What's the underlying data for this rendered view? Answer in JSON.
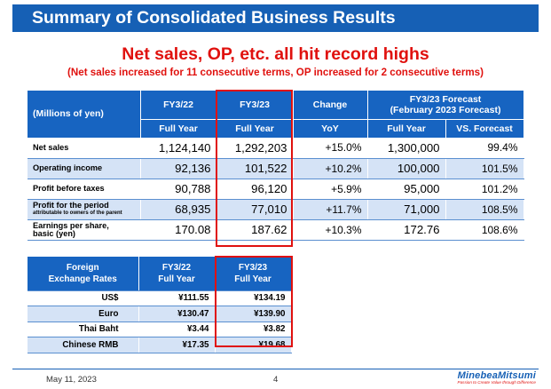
{
  "title": "Summary of Consolidated Business Results",
  "headline": "Net sales, OP, etc. all hit record highs",
  "subheadline": "(Net sales increased for 11 consecutive terms, OP increased for 2 consecutive terms)",
  "results_table": {
    "unit_label": "(Millions of yen)",
    "col_fy22": "FY3/22",
    "col_fy23": "FY3/23",
    "col_change": "Change",
    "col_forecast_line1": "FY3/23 Forecast",
    "col_forecast_line2": "(February 2023 Forecast)",
    "sub_fy22": "Full Year",
    "sub_fy23": "Full Year",
    "sub_change": "YoY",
    "sub_forecast": "Full Year",
    "sub_vs_forecast": "VS. Forecast",
    "rows": [
      {
        "label": "Net sales",
        "label_sub": "",
        "fy22": "1,124,140",
        "fy23": "1,292,203",
        "yoy": "+15.0%",
        "forecast": "1,300,000",
        "vs": "99.4%"
      },
      {
        "label": "Operating income",
        "label_sub": "",
        "fy22": "92,136",
        "fy23": "101,522",
        "yoy": "+10.2%",
        "forecast": "100,000",
        "vs": "101.5%"
      },
      {
        "label": "Profit before taxes",
        "label_sub": "",
        "fy22": "90,788",
        "fy23": "96,120",
        "yoy": "+5.9%",
        "forecast": "95,000",
        "vs": "101.2%"
      },
      {
        "label": "Profit for the period",
        "label_sub": "attributable to owners of the parent",
        "fy22": "68,935",
        "fy23": "77,010",
        "yoy": "+11.7%",
        "forecast": "71,000",
        "vs": "108.5%"
      },
      {
        "label": "Earnings per share,",
        "label_sub": "basic (yen)",
        "fy22": "170.08",
        "fy23": "187.62",
        "yoy": "+10.3%",
        "forecast": "172.76",
        "vs": "108.6%"
      }
    ]
  },
  "fx_table": {
    "header_label_line1": "Foreign",
    "header_label_line2": "Exchange Rates",
    "col_fy22_line1": "FY3/22",
    "col_fy22_line2": "Full Year",
    "col_fy23_line1": "FY3/23",
    "col_fy23_line2": "Full Year",
    "rows": [
      {
        "label": "US$",
        "fy22": "¥111.55",
        "fy23": "¥134.19"
      },
      {
        "label": "Euro",
        "fy22": "¥130.47",
        "fy23": "¥139.90"
      },
      {
        "label": "Thai Baht",
        "fy22": "¥3.44",
        "fy23": "¥3.82"
      },
      {
        "label": "Chinese RMB",
        "fy22": "¥17.35",
        "fy23": "¥19.68"
      }
    ]
  },
  "footer": {
    "date": "May 11, 2023",
    "page": "4",
    "logo": "MinebeaMitsumi",
    "tagline": "Passion to Create Value through Difference"
  },
  "colors": {
    "brand_blue": "#1660b5",
    "header_blue": "#1764c1",
    "highlight_red": "#e0110e",
    "row_alt": "#d5e3f6"
  }
}
